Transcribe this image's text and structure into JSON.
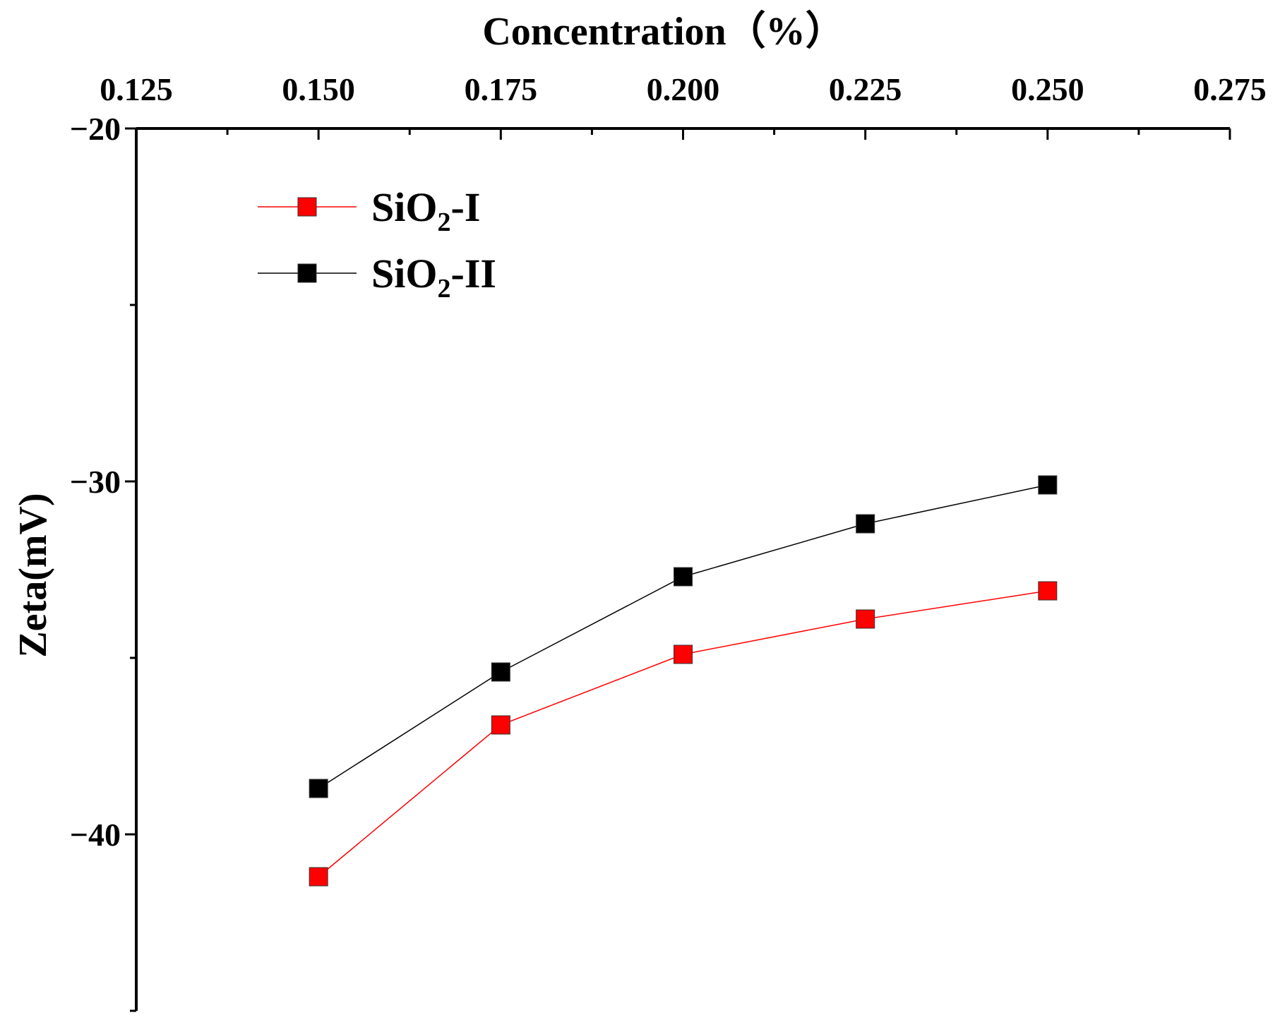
{
  "chart_data": {
    "type": "line",
    "xlabel": "Concentration（%）",
    "ylabel": "Zeta(mV)",
    "x_axis_position": "top",
    "xlim": [
      0.125,
      0.275
    ],
    "ylim": [
      -45,
      -20
    ],
    "x_ticks": [
      "0.125",
      "0.150",
      "0.175",
      "0.200",
      "0.225",
      "0.250",
      "0.275"
    ],
    "x_tick_values": [
      0.125,
      0.15,
      0.175,
      0.2,
      0.225,
      0.25,
      0.275
    ],
    "x_minor_ticks": [
      0.1375,
      0.1625,
      0.1875,
      0.2125,
      0.2375,
      0.2625
    ],
    "y_ticks": [
      "−20",
      "−30",
      "−40"
    ],
    "y_tick_values": [
      -20,
      -30,
      -40
    ],
    "y_minor_ticks": [
      -25,
      -35,
      -45
    ],
    "grid": false,
    "legend_position": "top-left",
    "x": [
      0.15,
      0.175,
      0.2,
      0.225,
      0.25
    ],
    "series": [
      {
        "name": "SiO2-I",
        "legend_base": "SiO",
        "legend_sub": "2",
        "legend_suffix": "-I",
        "color": "#ff0000",
        "marker": "square",
        "values": [
          -41.2,
          -36.9,
          -34.9,
          -33.9,
          -33.1
        ]
      },
      {
        "name": "SiO2-II",
        "legend_base": "SiO",
        "legend_sub": "2",
        "legend_suffix": "-II",
        "color": "#000000",
        "marker": "square",
        "values": [
          -38.7,
          -35.4,
          -32.7,
          -31.2,
          -30.1
        ]
      }
    ]
  }
}
